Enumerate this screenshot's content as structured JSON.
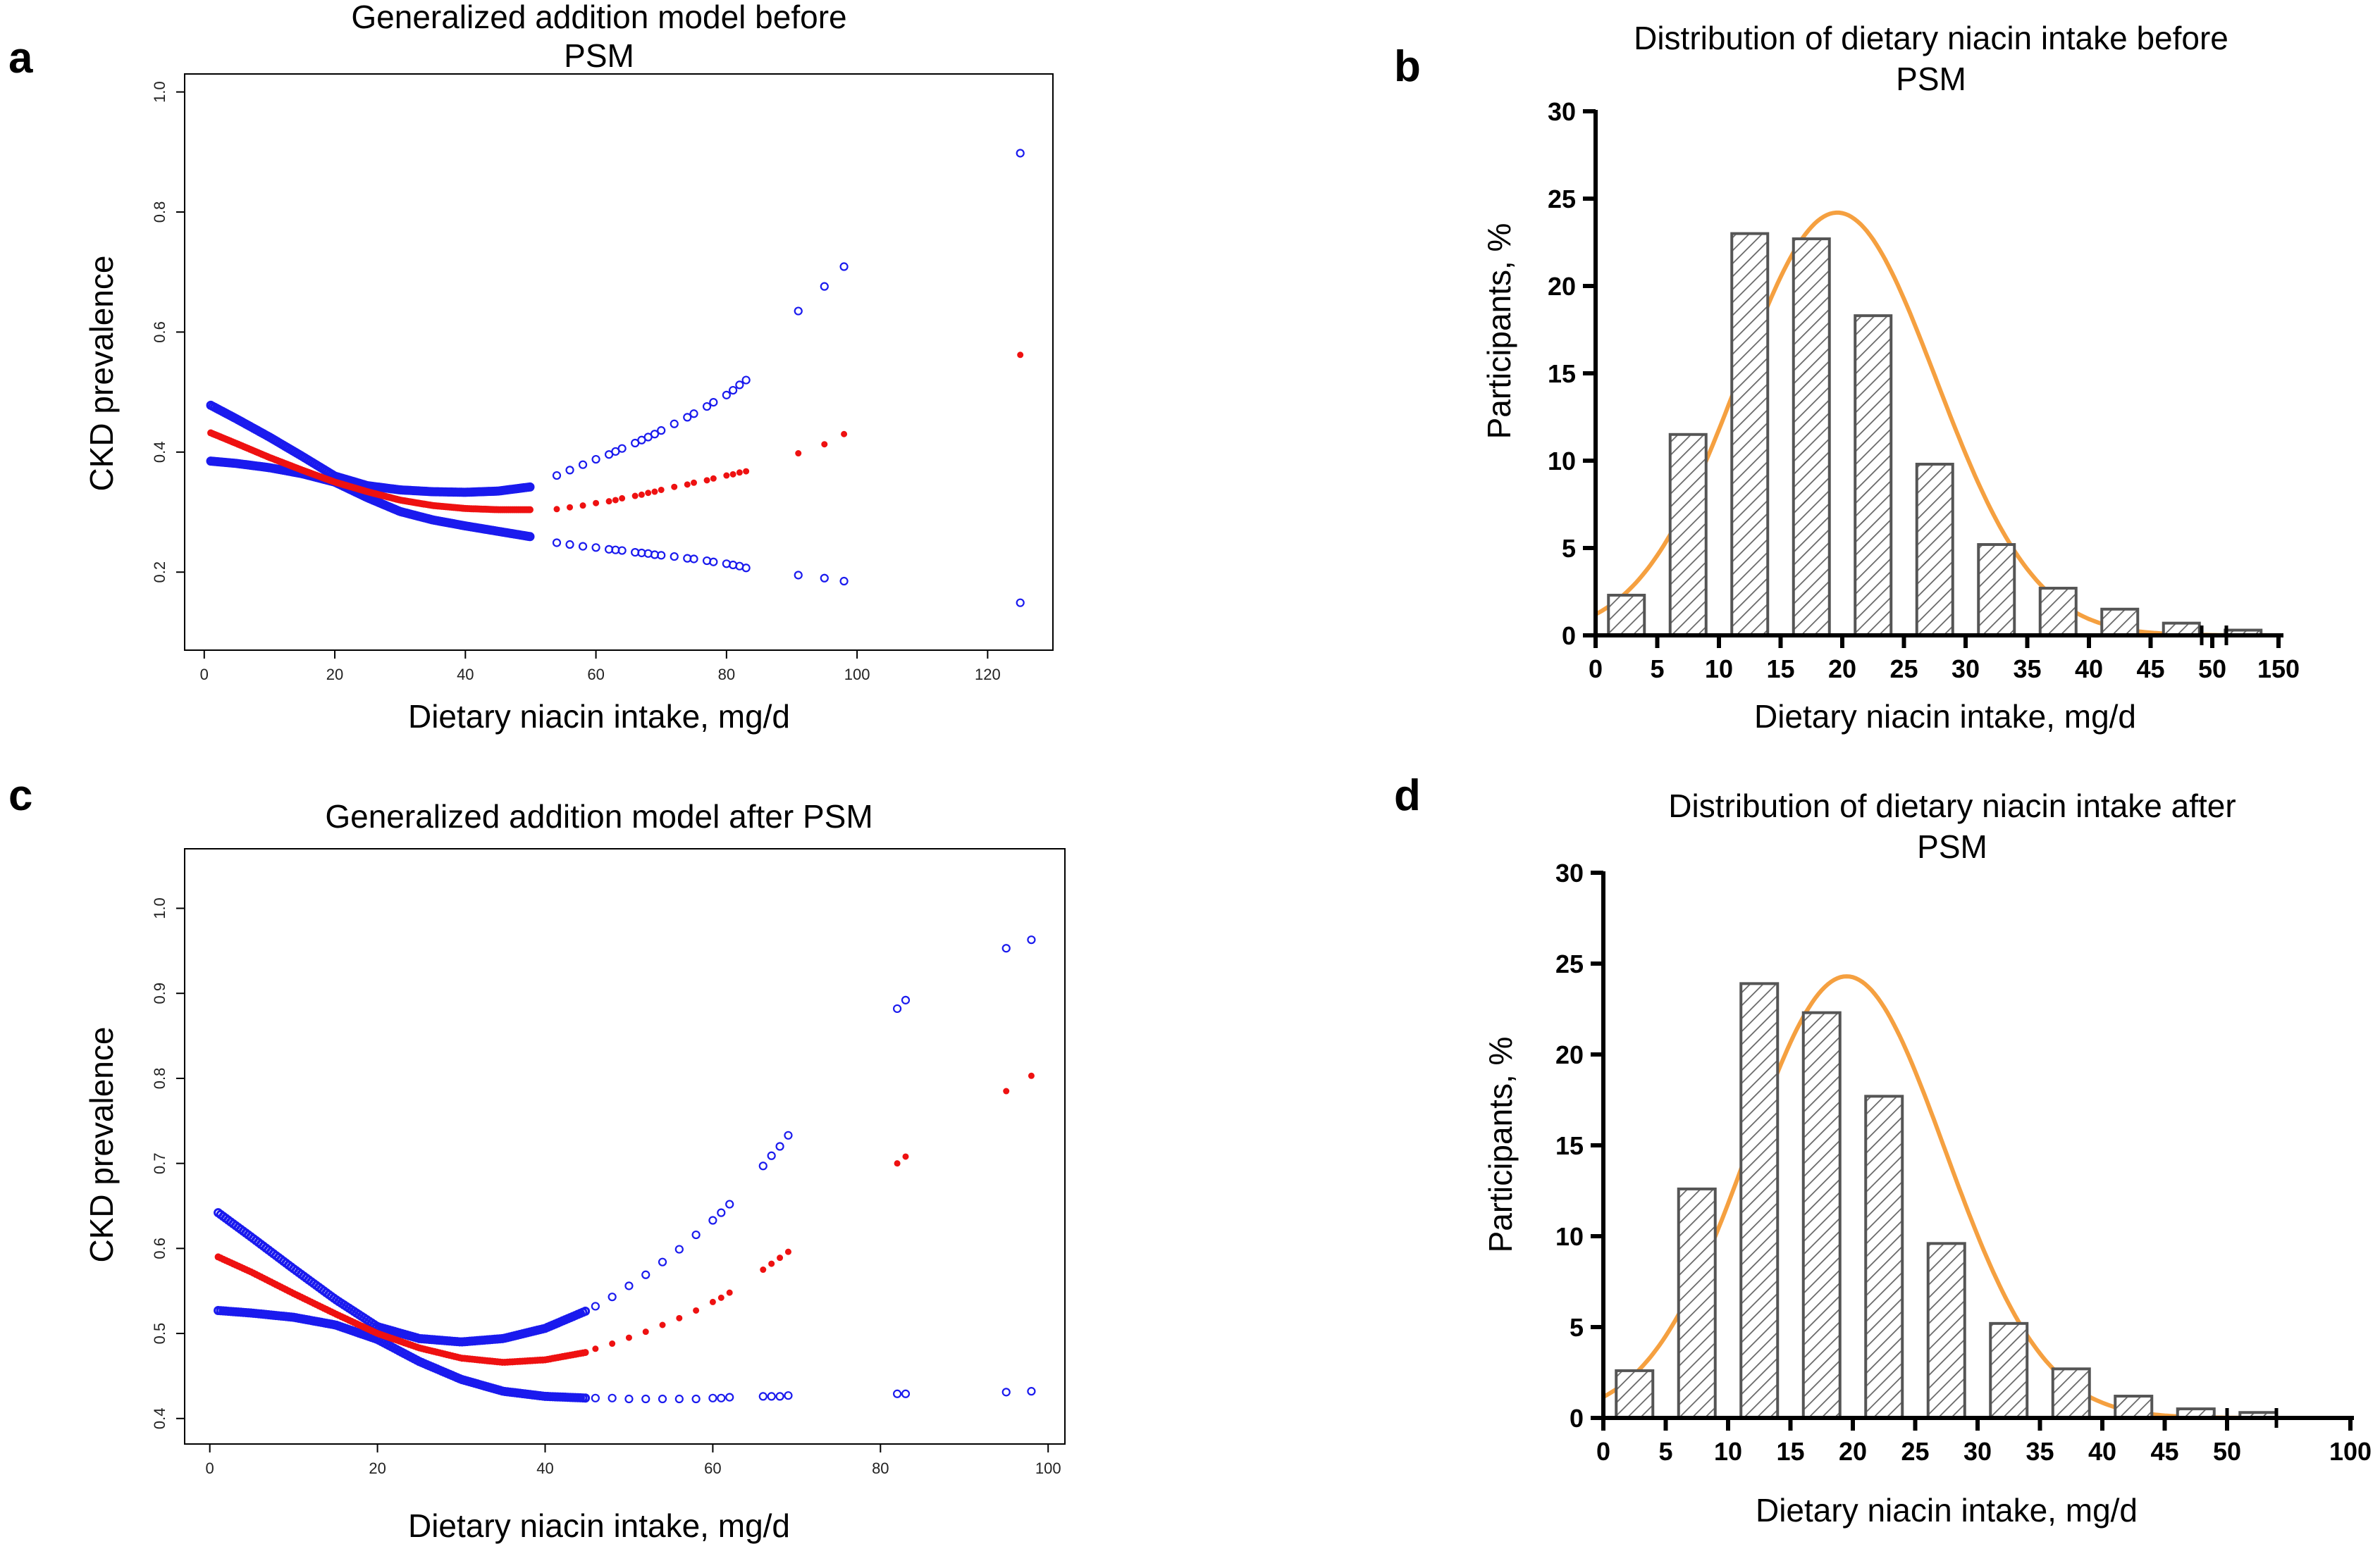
{
  "colors": {
    "ci": "#1a1aee",
    "fit": "#ee1111",
    "curve": "#f5a040",
    "bar_stroke": "#555555",
    "hatch": "#666666",
    "axis": "#000000"
  },
  "chart_data": [
    {
      "panel": "a",
      "type": "scatter",
      "title_lines": [
        "Generalized addition model before",
        "PSM"
      ],
      "xlabel": "Dietary niacin intake, mg/d",
      "ylabel": "CKD prevalence",
      "xlim": [
        -3,
        130
      ],
      "ylim": [
        0.07,
        1.03
      ],
      "xticks": [
        0,
        20,
        40,
        60,
        80,
        100,
        120
      ],
      "xtick_labels": [
        "0",
        "20",
        "40",
        "60",
        "80",
        "100",
        "120"
      ],
      "yticks": [
        0.2,
        0.4,
        0.6,
        0.8,
        1.0
      ],
      "ytick_labels": [
        "0.2",
        "0.4",
        "0.6",
        "0.8",
        "1.0"
      ],
      "dense_curves": {
        "x_range": [
          1,
          50
        ],
        "fit": [
          [
            1,
            0.432
          ],
          [
            5,
            0.414
          ],
          [
            10,
            0.391
          ],
          [
            15,
            0.37
          ],
          [
            20,
            0.35
          ],
          [
            25,
            0.334
          ],
          [
            30,
            0.32
          ],
          [
            35,
            0.311
          ],
          [
            40,
            0.306
          ],
          [
            45,
            0.304
          ],
          [
            50,
            0.304
          ]
        ],
        "upper": [
          [
            1,
            0.478
          ],
          [
            5,
            0.455
          ],
          [
            10,
            0.425
          ],
          [
            15,
            0.393
          ],
          [
            20,
            0.36
          ],
          [
            25,
            0.344
          ],
          [
            30,
            0.337
          ],
          [
            35,
            0.334
          ],
          [
            40,
            0.333
          ],
          [
            45,
            0.335
          ],
          [
            50,
            0.342
          ]
        ],
        "lower": [
          [
            1,
            0.385
          ],
          [
            5,
            0.381
          ],
          [
            10,
            0.374
          ],
          [
            15,
            0.364
          ],
          [
            20,
            0.35
          ],
          [
            25,
            0.324
          ],
          [
            30,
            0.301
          ],
          [
            35,
            0.287
          ],
          [
            40,
            0.277
          ],
          [
            45,
            0.268
          ],
          [
            50,
            0.259
          ]
        ]
      },
      "sparse_points": {
        "x": [
          54,
          56,
          58,
          60,
          62,
          63,
          64,
          66,
          67,
          68,
          69,
          70,
          72,
          74,
          75,
          77,
          78,
          80,
          81,
          82,
          83,
          91,
          95,
          98,
          125
        ],
        "fit": [
          0.305,
          0.308,
          0.311,
          0.315,
          0.318,
          0.32,
          0.323,
          0.327,
          0.329,
          0.332,
          0.334,
          0.337,
          0.342,
          0.346,
          0.349,
          0.353,
          0.356,
          0.361,
          0.363,
          0.366,
          0.368,
          0.398,
          0.413,
          0.43,
          0.562
        ],
        "upper": [
          0.361,
          0.37,
          0.379,
          0.388,
          0.396,
          0.401,
          0.406,
          0.415,
          0.42,
          0.425,
          0.43,
          0.436,
          0.447,
          0.458,
          0.464,
          0.476,
          0.483,
          0.495,
          0.503,
          0.512,
          0.52,
          0.635,
          0.676,
          0.709,
          0.898
        ],
        "lower": [
          0.249,
          0.246,
          0.243,
          0.241,
          0.238,
          0.237,
          0.236,
          0.233,
          0.232,
          0.231,
          0.229,
          0.228,
          0.226,
          0.223,
          0.222,
          0.219,
          0.217,
          0.214,
          0.212,
          0.21,
          0.207,
          0.195,
          0.19,
          0.185,
          0.149
        ]
      }
    },
    {
      "panel": "b",
      "type": "bar",
      "title_lines": [
        "Distribution of dietary niacin intake before",
        "PSM"
      ],
      "xlabel": "Dietary niacin intake, mg/d",
      "ylabel": "Participants, %",
      "ylim": [
        0,
        30
      ],
      "yticks": [
        0,
        5,
        10,
        15,
        20,
        25,
        30
      ],
      "ytick_labels": [
        "0",
        "5",
        "10",
        "15",
        "20",
        "25",
        "30"
      ],
      "xtick_labels": [
        "0",
        "5",
        "10",
        "15",
        "20",
        "25",
        "30",
        "35",
        "40",
        "45",
        "50",
        "150"
      ],
      "bar_centers": [
        2.5,
        7.5,
        12.5,
        17.5,
        22.5,
        27.5,
        32.5,
        37.5,
        42.5,
        47.5,
        52.5
      ],
      "values": [
        2.3,
        11.5,
        23.0,
        22.7,
        18.3,
        9.8,
        5.2,
        2.7,
        1.5,
        0.7,
        0.3
      ],
      "normal_fit": {
        "mean": 19.6,
        "peak": 24.2,
        "sd": 8.0,
        "x_range": [
          0,
          55
        ]
      }
    },
    {
      "panel": "c",
      "type": "scatter",
      "title_lines": [
        "Generalized addition model after PSM"
      ],
      "xlabel": "Dietary niacin intake, mg/d",
      "ylabel": "CKD prevalence",
      "xlim": [
        -3,
        102
      ],
      "ylim": [
        0.37,
        1.07
      ],
      "xticks": [
        0,
        20,
        40,
        60,
        80,
        100
      ],
      "xtick_labels": [
        "0",
        "20",
        "40",
        "60",
        "80",
        "100"
      ],
      "yticks": [
        0.4,
        0.5,
        0.6,
        0.7,
        0.8,
        0.9,
        1.0
      ],
      "ytick_labels": [
        "0.4",
        "0.5",
        "0.6",
        "0.7",
        "0.8",
        "0.9",
        "1.0"
      ],
      "dense_curves": {
        "x_range": [
          1,
          45
        ],
        "fit": [
          [
            1,
            0.59
          ],
          [
            5,
            0.572
          ],
          [
            10,
            0.547
          ],
          [
            15,
            0.523
          ],
          [
            20,
            0.5
          ],
          [
            25,
            0.483
          ],
          [
            30,
            0.471
          ],
          [
            35,
            0.466
          ],
          [
            40,
            0.469
          ],
          [
            45,
            0.478
          ]
        ],
        "upper": [
          [
            1,
            0.642
          ],
          [
            5,
            0.613
          ],
          [
            10,
            0.576
          ],
          [
            15,
            0.54
          ],
          [
            20,
            0.508
          ],
          [
            25,
            0.494
          ],
          [
            30,
            0.49
          ],
          [
            35,
            0.494
          ],
          [
            40,
            0.506
          ],
          [
            45,
            0.527
          ]
        ],
        "lower": [
          [
            1,
            0.527
          ],
          [
            5,
            0.524
          ],
          [
            10,
            0.519
          ],
          [
            15,
            0.51
          ],
          [
            20,
            0.493
          ],
          [
            25,
            0.467
          ],
          [
            30,
            0.446
          ],
          [
            35,
            0.432
          ],
          [
            40,
            0.426
          ],
          [
            45,
            0.424
          ]
        ]
      },
      "sparse_points": {
        "x": [
          46,
          48,
          50,
          52,
          54,
          56,
          58,
          60,
          61,
          62,
          66,
          67,
          68,
          69,
          82,
          83,
          95,
          98
        ],
        "fit": [
          0.482,
          0.488,
          0.495,
          0.502,
          0.51,
          0.518,
          0.527,
          0.537,
          0.542,
          0.548,
          0.575,
          0.582,
          0.589,
          0.596,
          0.7,
          0.708,
          0.785,
          0.803
        ],
        "upper": [
          0.532,
          0.543,
          0.556,
          0.569,
          0.584,
          0.599,
          0.616,
          0.633,
          0.642,
          0.652,
          0.697,
          0.709,
          0.72,
          0.733,
          0.882,
          0.892,
          0.953,
          0.963
        ],
        "lower": [
          0.424,
          0.424,
          0.423,
          0.423,
          0.423,
          0.423,
          0.423,
          0.424,
          0.424,
          0.425,
          0.426,
          0.426,
          0.426,
          0.427,
          0.429,
          0.429,
          0.431,
          0.432
        ]
      }
    },
    {
      "panel": "d",
      "type": "bar",
      "title_lines": [
        "Distribution of dietary niacin intake after",
        "PSM"
      ],
      "xlabel": "Dietary niacin intake, mg/d",
      "ylabel": "Participants, %",
      "ylim": [
        0,
        30
      ],
      "yticks": [
        0,
        5,
        10,
        15,
        20,
        25,
        30
      ],
      "ytick_labels": [
        "0",
        "5",
        "10",
        "15",
        "20",
        "25",
        "30"
      ],
      "xtick_labels": [
        "0",
        "5",
        "10",
        "15",
        "20",
        "25",
        "30",
        "35",
        "40",
        "45",
        "50",
        "100"
      ],
      "bar_centers": [
        2.5,
        7.5,
        12.5,
        17.5,
        22.5,
        27.5,
        32.5,
        37.5,
        42.5,
        47.5,
        52.5
      ],
      "values": [
        2.6,
        12.6,
        23.9,
        22.3,
        17.7,
        9.6,
        5.2,
        2.7,
        1.2,
        0.5,
        0.3
      ],
      "normal_fit": {
        "mean": 19.5,
        "peak": 24.3,
        "sd": 7.9,
        "x_range": [
          0,
          60
        ]
      }
    }
  ]
}
